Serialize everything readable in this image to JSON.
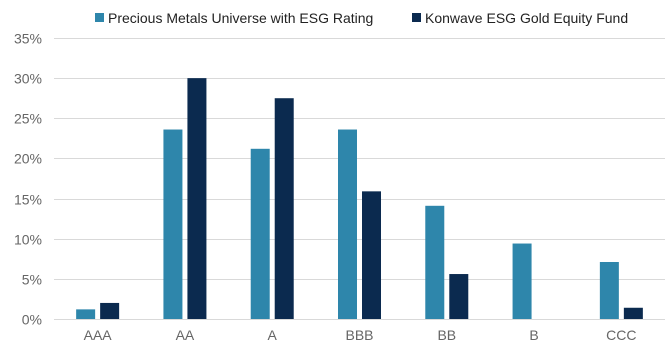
{
  "chart_data": {
    "type": "bar",
    "title": "",
    "xlabel": "",
    "ylabel": "",
    "categories": [
      "AAA",
      "AA",
      "A",
      "BBB",
      "BB",
      "B",
      "CCC"
    ],
    "series": [
      {
        "name": "Precious Metals Universe with ESG Rating",
        "color": "#2e86ab",
        "values": [
          1.2,
          23.6,
          21.2,
          23.6,
          14.1,
          9.4,
          7.1
        ]
      },
      {
        "name": "Konwave ESG Gold Equity Fund",
        "color": "#0b2a4f",
        "values": [
          2.0,
          30.0,
          27.5,
          15.9,
          5.6,
          0,
          1.4
        ]
      }
    ],
    "ylim": [
      0,
      35
    ],
    "y_ticks": [
      0,
      5,
      10,
      15,
      20,
      25,
      30,
      35
    ],
    "y_tick_labels": [
      "0%",
      "5%",
      "10%",
      "15%",
      "20%",
      "25%",
      "30%",
      "35%"
    ],
    "grid": true,
    "legend_position": "top"
  }
}
